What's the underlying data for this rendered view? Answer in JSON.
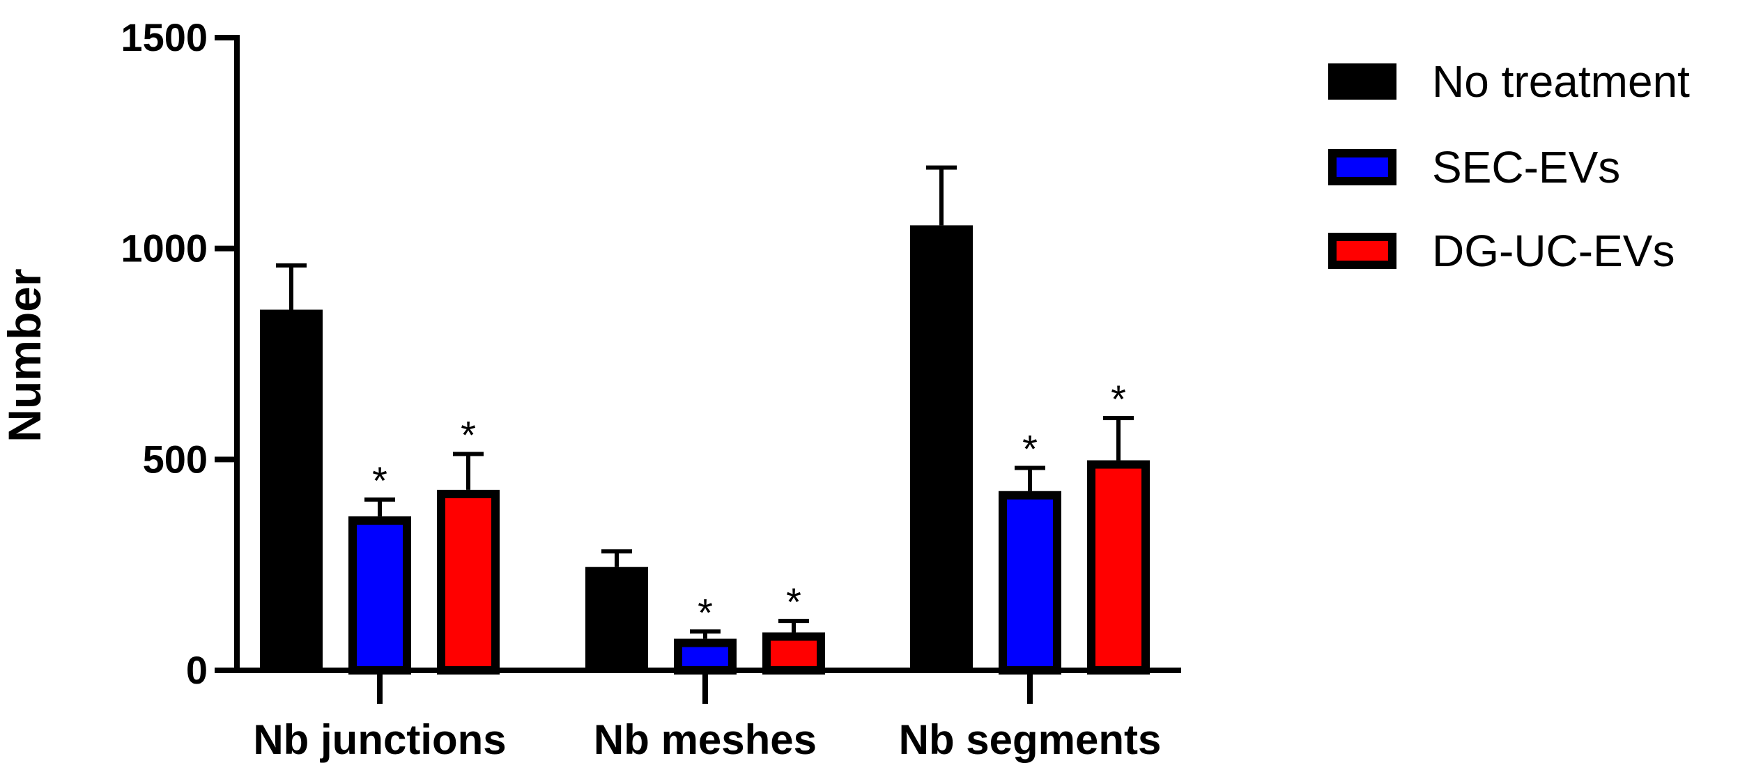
{
  "chart_data": {
    "type": "bar",
    "title": "",
    "xlabel": "",
    "ylabel": "Number",
    "ylim": [
      0,
      1500
    ],
    "yticks": [
      0,
      500,
      1000,
      1500
    ],
    "categories": [
      "Nb junctions",
      "Nb meshes",
      "Nb segments"
    ],
    "series": [
      {
        "name": "No treatment",
        "color": "#000000",
        "values": [
          855,
          245,
          1055
        ],
        "errors": [
          105,
          37,
          137
        ],
        "significance": [
          "",
          "",
          ""
        ]
      },
      {
        "name": "SEC-EVs",
        "color": "#0000ff",
        "values": [
          365,
          75,
          425
        ],
        "errors": [
          40,
          17,
          55
        ],
        "significance": [
          "*",
          "*",
          "*"
        ]
      },
      {
        "name": "DG-UC-EVs",
        "color": "#ff0000",
        "values": [
          428,
          90,
          498
        ],
        "errors": [
          85,
          27,
          100
        ],
        "significance": [
          "*",
          "*",
          "*"
        ]
      }
    ],
    "grid": false,
    "legend_position": "right"
  }
}
